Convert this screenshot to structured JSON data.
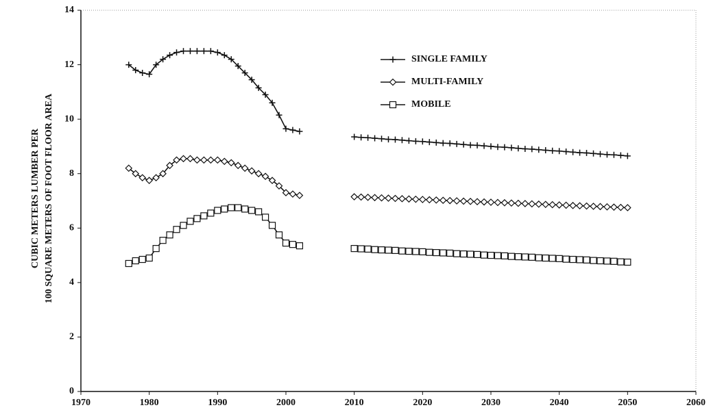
{
  "chart_data": {
    "type": "line",
    "ylabel": [
      "CUBIC METERS LUMBER PER",
      "100 SQUARE METERS OF FOOT FLOOR AREA"
    ],
    "x": [
      1977,
      1978,
      1979,
      1980,
      1981,
      1982,
      1983,
      1984,
      1985,
      1986,
      1987,
      1988,
      1989,
      1990,
      1991,
      1992,
      1993,
      1994,
      1995,
      1996,
      1997,
      1998,
      1999,
      2000,
      2001,
      2002,
      2003,
      2004,
      2005,
      2006,
      2007,
      2008,
      2009,
      2010,
      2011,
      2012,
      2013,
      2014,
      2015,
      2016,
      2017,
      2018,
      2019,
      2020,
      2021,
      2022,
      2023,
      2024,
      2025,
      2026,
      2027,
      2028,
      2029,
      2030,
      2031,
      2032,
      2033,
      2034,
      2035,
      2036,
      2037,
      2038,
      2039,
      2040,
      2041,
      2042,
      2043,
      2044,
      2045,
      2046,
      2047,
      2048,
      2049,
      2050
    ],
    "series": [
      {
        "name": "SINGLE FAMILY",
        "color": "#111111",
        "marker": "plus",
        "values": [
          12.0,
          11.8,
          11.7,
          11.65,
          12.0,
          12.2,
          12.35,
          12.45,
          12.5,
          12.5,
          12.5,
          12.5,
          12.5,
          12.45,
          12.35,
          12.2,
          11.95,
          11.7,
          11.45,
          11.15,
          10.9,
          10.6,
          10.15,
          9.65,
          9.6,
          9.55,
          null,
          null,
          null,
          null,
          null,
          null,
          null,
          9.35,
          9.33,
          9.32,
          9.3,
          9.28,
          9.26,
          9.25,
          9.23,
          9.21,
          9.19,
          9.18,
          9.16,
          9.14,
          9.12,
          9.11,
          9.09,
          9.07,
          9.05,
          9.04,
          9.02,
          9.0,
          8.98,
          8.97,
          8.95,
          8.93,
          8.91,
          8.9,
          8.88,
          8.86,
          8.84,
          8.83,
          8.81,
          8.79,
          8.77,
          8.76,
          8.74,
          8.72,
          8.7,
          8.69,
          8.67,
          8.65
        ]
      },
      {
        "name": "MULTI-FAMILY",
        "color": "#111111",
        "marker": "diamond",
        "values": [
          8.2,
          8.0,
          7.85,
          7.75,
          7.85,
          8.0,
          8.3,
          8.5,
          8.55,
          8.55,
          8.5,
          8.5,
          8.5,
          8.5,
          8.45,
          8.4,
          8.3,
          8.2,
          8.1,
          8.0,
          7.9,
          7.75,
          7.55,
          7.3,
          7.25,
          7.2,
          null,
          null,
          null,
          null,
          null,
          null,
          null,
          7.15,
          7.14,
          7.13,
          7.12,
          7.11,
          7.1,
          7.09,
          7.08,
          7.07,
          7.06,
          7.05,
          7.04,
          7.03,
          7.02,
          7.01,
          7.0,
          6.99,
          6.98,
          6.97,
          6.96,
          6.95,
          6.94,
          6.93,
          6.92,
          6.91,
          6.9,
          6.89,
          6.88,
          6.87,
          6.86,
          6.85,
          6.84,
          6.83,
          6.82,
          6.81,
          6.8,
          6.79,
          6.78,
          6.77,
          6.76,
          6.75
        ]
      },
      {
        "name": "MOBILE",
        "color": "#111111",
        "marker": "square",
        "values": [
          4.7,
          4.8,
          4.85,
          4.9,
          5.25,
          5.55,
          5.75,
          5.95,
          6.1,
          6.25,
          6.35,
          6.45,
          6.55,
          6.65,
          6.7,
          6.75,
          6.75,
          6.7,
          6.65,
          6.6,
          6.4,
          6.1,
          5.75,
          5.45,
          5.4,
          5.35,
          null,
          null,
          null,
          null,
          null,
          null,
          null,
          5.25,
          5.24,
          5.23,
          5.21,
          5.2,
          5.19,
          5.18,
          5.16,
          5.15,
          5.14,
          5.13,
          5.11,
          5.1,
          5.09,
          5.08,
          5.06,
          5.05,
          5.04,
          5.03,
          5.01,
          5.0,
          4.99,
          4.98,
          4.96,
          4.95,
          4.94,
          4.93,
          4.91,
          4.9,
          4.89,
          4.88,
          4.86,
          4.85,
          4.84,
          4.83,
          4.81,
          4.8,
          4.79,
          4.78,
          4.76,
          4.75
        ]
      }
    ],
    "xlim": [
      1970,
      2060
    ],
    "xticks": [
      1970,
      1980,
      1990,
      2000,
      2010,
      2020,
      2030,
      2040,
      2050,
      2060
    ],
    "ylim": [
      0,
      14
    ],
    "yticks": [
      0,
      2,
      4,
      6,
      8,
      10,
      12,
      14
    ],
    "legend": "top-right"
  }
}
